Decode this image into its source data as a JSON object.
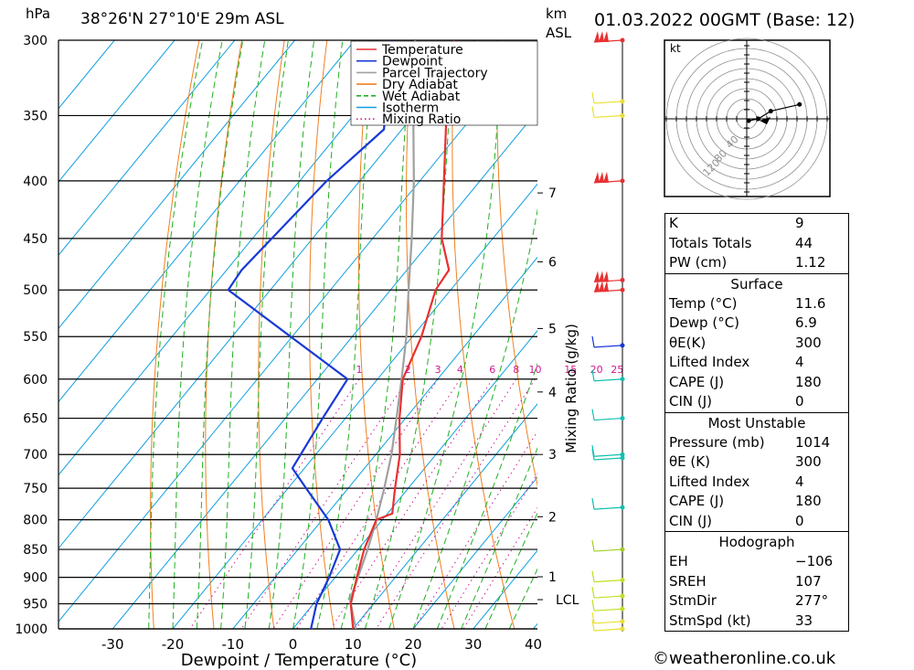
{
  "header": {
    "unit_left": "hPa",
    "location": "38°26'N  27°10'E  29m  ASL",
    "unit_km": "km",
    "unit_asl": "ASL",
    "datetime": "01.03.2022  00GMT  (Base: 12)"
  },
  "legend": [
    {
      "label": "Temperature",
      "color": "#e83030",
      "style": "solid"
    },
    {
      "label": "Dewpoint",
      "color": "#1838d8",
      "style": "solid"
    },
    {
      "label": "Parcel Trajectory",
      "color": "#a0a0a0",
      "style": "solid"
    },
    {
      "label": "Dry Adiabat",
      "color": "#f08020",
      "style": "solid"
    },
    {
      "label": "Wet Adiabat",
      "color": "#20b020",
      "style": "dashed"
    },
    {
      "label": "Isotherm",
      "color": "#10a0e0",
      "style": "solid"
    },
    {
      "label": "Mixing Ratio",
      "color": "#d01890",
      "style": "dotted"
    }
  ],
  "chart_data": {
    "type": "skew-t log-p",
    "title": "38°26'N  27°10'E  29m  ASL",
    "xlabel": "Dewpoint / Temperature (°C)",
    "ylabel": "hPa",
    "right_axis_label": "Mixing Ratio (g/kg)",
    "x_ticks": [
      -30,
      -20,
      -10,
      0,
      10,
      20,
      30,
      40
    ],
    "pressure_levels": [
      300,
      350,
      400,
      450,
      500,
      550,
      600,
      650,
      700,
      750,
      800,
      850,
      900,
      950,
      1000
    ],
    "x_range_at_1000hPa": [
      -40,
      40
    ],
    "height_km_ticks": [
      {
        "label": "7",
        "p": 410
      },
      {
        "label": "6",
        "p": 472
      },
      {
        "label": "5",
        "p": 541
      },
      {
        "label": "4",
        "p": 616
      },
      {
        "label": "3",
        "p": 700
      },
      {
        "label": "2",
        "p": 795
      },
      {
        "label": "1",
        "p": 899
      },
      {
        "label": "LCL",
        "p": 942
      }
    ],
    "mixing_ratio_labels": [
      "1",
      "2",
      "3",
      "4",
      "6",
      "8",
      "10",
      "15",
      "20",
      "25"
    ],
    "mixing_ratio_values": [
      1,
      2,
      3,
      4,
      6,
      8,
      10,
      15,
      20,
      25
    ],
    "temperature": [
      {
        "p": 1014,
        "t": 11.6
      },
      {
        "p": 1000,
        "t": 10.0
      },
      {
        "p": 950,
        "t": 6.2
      },
      {
        "p": 900,
        "t": 3.6
      },
      {
        "p": 850,
        "t": 1.0
      },
      {
        "p": 800,
        "t": -1.0
      },
      {
        "p": 790,
        "t": 0.8
      },
      {
        "p": 750,
        "t": -2.2
      },
      {
        "p": 700,
        "t": -6.0
      },
      {
        "p": 650,
        "t": -11.0
      },
      {
        "p": 600,
        "t": -15.8
      },
      {
        "p": 550,
        "t": -18.5
      },
      {
        "p": 500,
        "t": -22.5
      },
      {
        "p": 480,
        "t": -23.0
      },
      {
        "p": 450,
        "t": -28.5
      },
      {
        "p": 400,
        "t": -36.0
      },
      {
        "p": 350,
        "t": -44.5
      },
      {
        "p": 300,
        "t": -53.5
      }
    ],
    "dewpoint": [
      {
        "p": 1014,
        "t": 6.9
      },
      {
        "p": 1000,
        "t": 3.0
      },
      {
        "p": 950,
        "t": 0.5
      },
      {
        "p": 900,
        "t": -1.0
      },
      {
        "p": 850,
        "t": -3.0
      },
      {
        "p": 800,
        "t": -9.0
      },
      {
        "p": 750,
        "t": -17.0
      },
      {
        "p": 720,
        "t": -22.0
      },
      {
        "p": 700,
        "t": -22.5
      },
      {
        "p": 650,
        "t": -23.8
      },
      {
        "p": 600,
        "t": -25.0
      },
      {
        "p": 500,
        "t": -57.0
      },
      {
        "p": 480,
        "t": -57.5
      },
      {
        "p": 400,
        "t": -55.5
      },
      {
        "p": 360,
        "t": -53.0
      },
      {
        "p": 300,
        "t": -64.0
      }
    ],
    "parcel": [
      {
        "p": 1014,
        "t": 11.6
      },
      {
        "p": 942,
        "t": 5.5
      },
      {
        "p": 900,
        "t": 3.8
      },
      {
        "p": 850,
        "t": 1.6
      },
      {
        "p": 800,
        "t": -1.0
      },
      {
        "p": 750,
        "t": -4.0
      },
      {
        "p": 700,
        "t": -7.4
      },
      {
        "p": 650,
        "t": -11.5
      },
      {
        "p": 600,
        "t": -16.0
      },
      {
        "p": 550,
        "t": -21.0
      },
      {
        "p": 500,
        "t": -27.0
      },
      {
        "p": 450,
        "t": -33.5
      },
      {
        "p": 400,
        "t": -41.0
      },
      {
        "p": 350,
        "t": -50.0
      },
      {
        "p": 300,
        "t": -60.0
      }
    ],
    "wind_barbs": [
      {
        "p": 300,
        "color": "#e83030"
      },
      {
        "p": 340,
        "color": "#e8e030"
      },
      {
        "p": 350,
        "color": "#e8e030"
      },
      {
        "p": 400,
        "color": "#e83030"
      },
      {
        "p": 490,
        "color": "#e83030"
      },
      {
        "p": 500,
        "color": "#e83030"
      },
      {
        "p": 560,
        "color": "#1838d8"
      },
      {
        "p": 600,
        "color": "#10c0b0"
      },
      {
        "p": 650,
        "color": "#10c0b0"
      },
      {
        "p": 700,
        "color": "#10c0b0"
      },
      {
        "p": 705,
        "color": "#10c0b0"
      },
      {
        "p": 780,
        "color": "#10c0b0"
      },
      {
        "p": 850,
        "color": "#a0d020"
      },
      {
        "p": 905,
        "color": "#c0e020"
      },
      {
        "p": 935,
        "color": "#c0e020"
      },
      {
        "p": 960,
        "color": "#c0e020"
      },
      {
        "p": 985,
        "color": "#e8e030"
      },
      {
        "p": 1000,
        "color": "#e8e030"
      }
    ],
    "hodograph": {
      "unit": "kt",
      "ring_labels": [
        "40",
        "80",
        "120"
      ],
      "points": [
        [
          2,
          -2
        ],
        [
          12,
          0
        ],
        [
          25,
          8
        ],
        [
          55,
          15
        ]
      ]
    }
  },
  "tables": {
    "indices": [
      {
        "label": "K",
        "value": "9"
      },
      {
        "label": "Totals Totals",
        "value": "44"
      },
      {
        "label": "PW (cm)",
        "value": "1.12"
      }
    ],
    "surface": {
      "title": "Surface",
      "rows": [
        {
          "label": "Temp (°C)",
          "value": "11.6"
        },
        {
          "label": "Dewp (°C)",
          "value": "6.9"
        },
        {
          "label": "θE(K)",
          "value": "300"
        },
        {
          "label": "Lifted Index",
          "value": "4"
        },
        {
          "label": "CAPE (J)",
          "value": "180"
        },
        {
          "label": "CIN (J)",
          "value": "0"
        }
      ]
    },
    "most_unstable": {
      "title": "Most Unstable",
      "rows": [
        {
          "label": "Pressure (mb)",
          "value": "1014"
        },
        {
          "label": "θE (K)",
          "value": "300"
        },
        {
          "label": "Lifted Index",
          "value": "4"
        },
        {
          "label": "CAPE (J)",
          "value": "180"
        },
        {
          "label": "CIN (J)",
          "value": "0"
        }
      ]
    },
    "hodograph": {
      "title": "Hodograph",
      "rows": [
        {
          "label": "EH",
          "value": "−106"
        },
        {
          "label": "SREH",
          "value": "107"
        },
        {
          "label": "StmDir",
          "value": "277°"
        },
        {
          "label": "StmSpd (kt)",
          "value": "33"
        }
      ]
    }
  },
  "footer": {
    "credit": "©weatheronline.co.uk"
  }
}
